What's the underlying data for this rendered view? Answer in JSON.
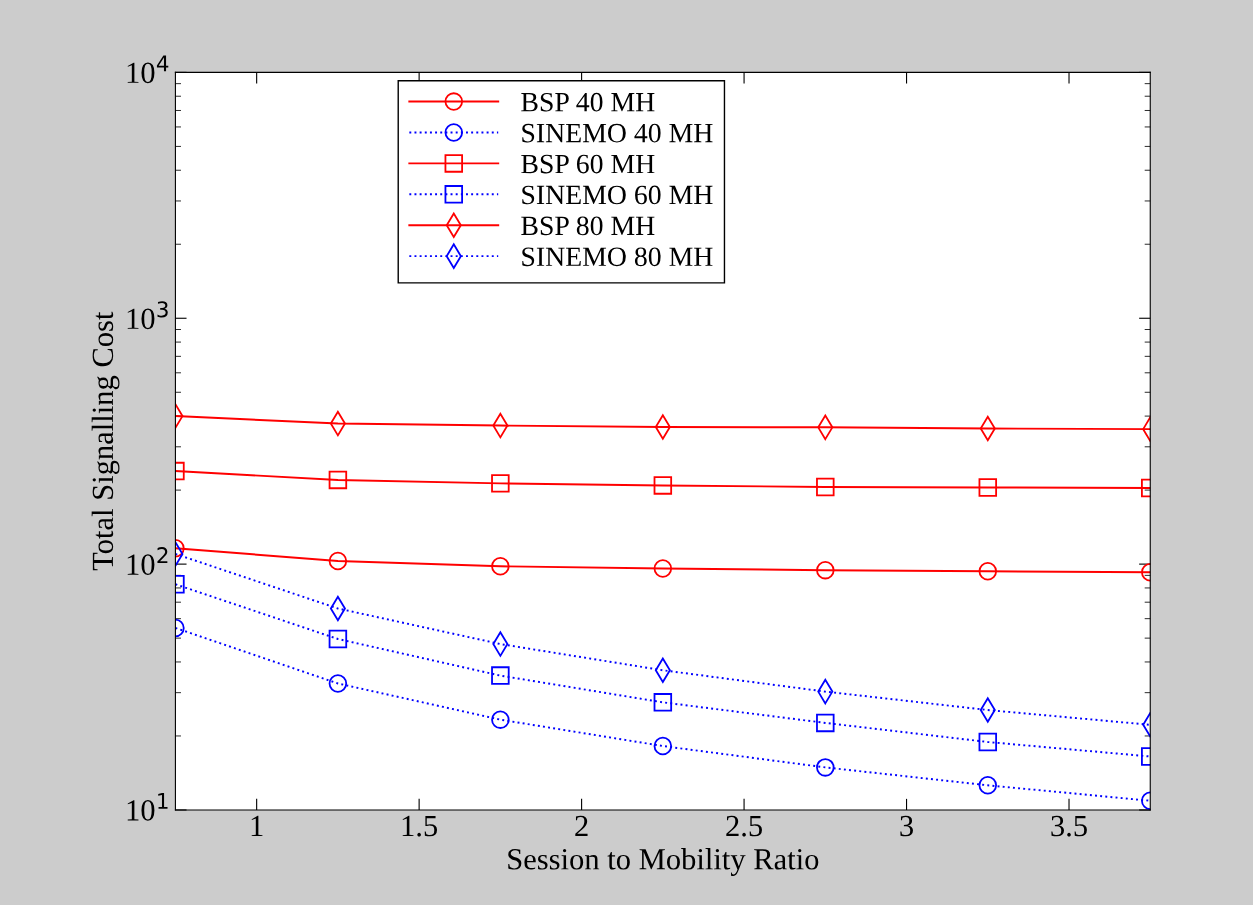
{
  "chart_data": {
    "type": "line",
    "xlabel": "Session to Mobility Ratio",
    "ylabel": "Total Signalling Cost",
    "x": [
      0.75,
      1.25,
      1.75,
      2.25,
      2.75,
      3.25,
      3.75
    ],
    "log": "y",
    "xlim": [
      0.75,
      3.75
    ],
    "ylim": [
      10,
      10000
    ],
    "xticks": [
      1,
      1.5,
      2,
      2.5,
      3,
      3.5
    ],
    "yticks": [
      {
        "value": 10,
        "label": "10$^{1}$"
      },
      {
        "value": 100,
        "label": "10$^{2}$"
      },
      {
        "value": 1000,
        "label": "10$^{3}$"
      },
      {
        "value": 10000,
        "label": "10$^{4}$"
      }
    ],
    "grid": false,
    "legend": "top",
    "series": [
      {
        "name": "BSP 40 MH",
        "color": "#ff0000",
        "marker": "circle",
        "line_style": "solid",
        "values": [
          116,
          103,
          98,
          96,
          94.5,
          93.5,
          92.7
        ]
      },
      {
        "name": "SINEMO 40 MH",
        "color": "#0000ff",
        "marker": "circle",
        "line_style": "dotted",
        "values": [
          55,
          32.7,
          23.3,
          18.2,
          14.9,
          12.6,
          10.9
        ]
      },
      {
        "name": "BSP 60 MH",
        "color": "#ff0000",
        "marker": "square",
        "line_style": "solid",
        "values": [
          239,
          220,
          213,
          209,
          206,
          205,
          204
        ]
      },
      {
        "name": "SINEMO 60 MH",
        "color": "#0000ff",
        "marker": "square",
        "line_style": "dotted",
        "values": [
          82.8,
          49.6,
          35.2,
          27.4,
          22.6,
          18.9,
          16.5
        ]
      },
      {
        "name": "BSP 80 MH",
        "color": "#ff0000",
        "marker": "diamond",
        "line_style": "solid",
        "values": [
          400,
          373,
          366,
          361,
          360,
          356,
          354
        ]
      },
      {
        "name": "SINEMO 80 MH",
        "color": "#0000ff",
        "marker": "diamond",
        "line_style": "dotted",
        "values": [
          110,
          66,
          47.3,
          37,
          30.3,
          25.5,
          22.2
        ]
      }
    ]
  }
}
